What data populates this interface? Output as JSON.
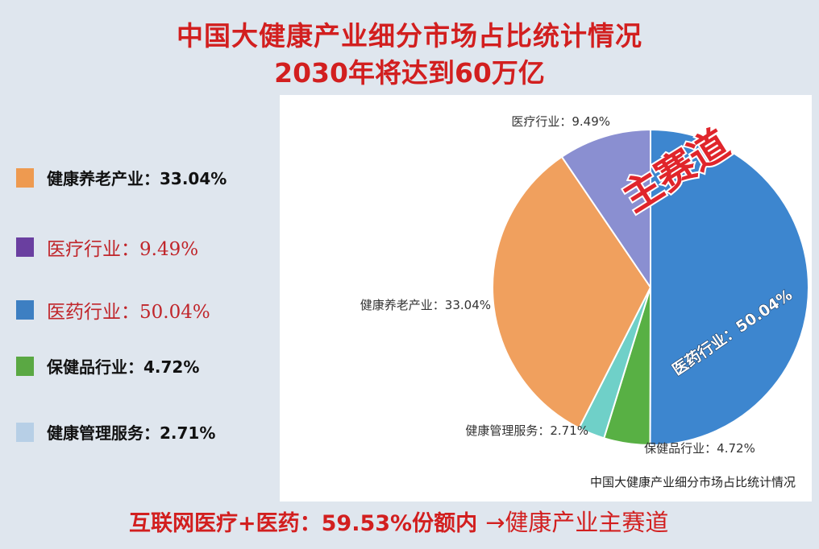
{
  "title": {
    "line1": "中国大健康产业细分市场占比统计情况",
    "line2": "2030年将达到60万亿"
  },
  "legend": [
    {
      "label": "健康养老产业：33.04%",
      "color": "#ee9a50",
      "style": "bold"
    },
    {
      "label": "医疗行业：9.49%",
      "color": "#6a3fa0",
      "style": "red"
    },
    {
      "label": "医药行业：50.04%",
      "color": "#3d7fc2",
      "style": "red"
    },
    {
      "label": "保健品行业：4.72%",
      "color": "#5aa843",
      "style": "bold"
    },
    {
      "label": "健康管理服务：2.71%",
      "color": "#b7cfe6",
      "style": "bold"
    }
  ],
  "chart_data": {
    "type": "pie",
    "title": "中国大健康产业细分市场占比统计情况",
    "slices": [
      {
        "name": "医药行业",
        "value": 50.04,
        "label": "医药行业：50.04%",
        "color": "#3d86cf"
      },
      {
        "name": "保健品行业",
        "value": 4.72,
        "label": "保健品行业：4.72%",
        "color": "#58b044"
      },
      {
        "name": "健康管理服务",
        "value": 2.71,
        "label": "健康管理服务：2.71%",
        "color": "#6fd0c8"
      },
      {
        "name": "健康养老产业",
        "value": 33.04,
        "label": "健康养老产业：33.04%",
        "color": "#f0a05e"
      },
      {
        "name": "医疗行业",
        "value": 9.49,
        "label": "医疗行业：9.49%",
        "color": "#8a8fd1"
      }
    ],
    "start": "12 o'clock, clockwise"
  },
  "stamp": "主赛道",
  "bottom": {
    "text": "互联网医疗+医药：59.53%份额内",
    "arrow_text": "→健康产业主赛道"
  }
}
